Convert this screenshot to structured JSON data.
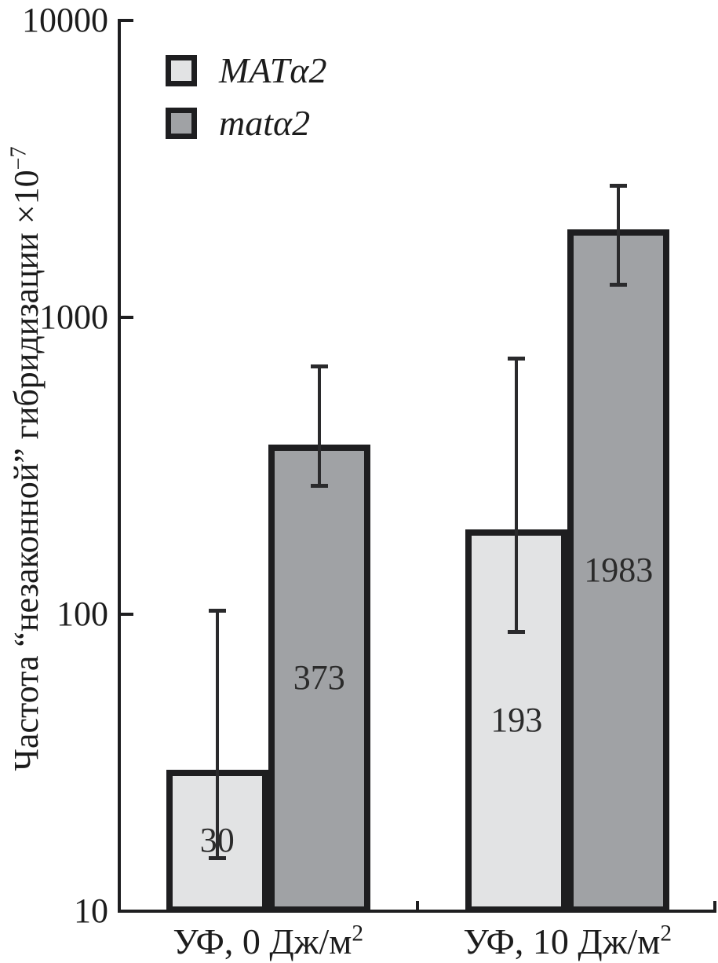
{
  "figure": {
    "background": "#ffffff"
  },
  "colors": {
    "ink": "#1e1e20",
    "text": "#1c1c1c",
    "error_bar": "#2a2a2c",
    "bar_light": "#e2e3e4",
    "bar_dark": "#a0a2a5"
  },
  "chart_data": {
    "type": "bar",
    "log_scale": true,
    "title": "",
    "ylabel_main": "Частота “незаконной” гибридизации ×10",
    "ylabel_sup": "−7",
    "ylim": [
      10,
      10000
    ],
    "yticks": [
      "10",
      "100",
      "1000",
      "10000"
    ],
    "categories": [
      {
        "label_main": "УФ, 0 Дж/м",
        "label_sup": "2"
      },
      {
        "label_main": "УФ, 10 Дж/м",
        "label_sup": "2"
      }
    ],
    "series": [
      {
        "name": "MATα2",
        "fill": "#e2e3e4",
        "values": [
          30,
          193
        ],
        "error_low": [
          15,
          87
        ],
        "error_high": [
          103,
          730
        ]
      },
      {
        "name": "matα2",
        "fill": "#a0a2a5",
        "values": [
          373,
          1983
        ],
        "error_low": [
          270,
          1280
        ],
        "error_high": [
          685,
          2780
        ]
      }
    ],
    "legend_position": "top-left-inside",
    "grid": false
  }
}
